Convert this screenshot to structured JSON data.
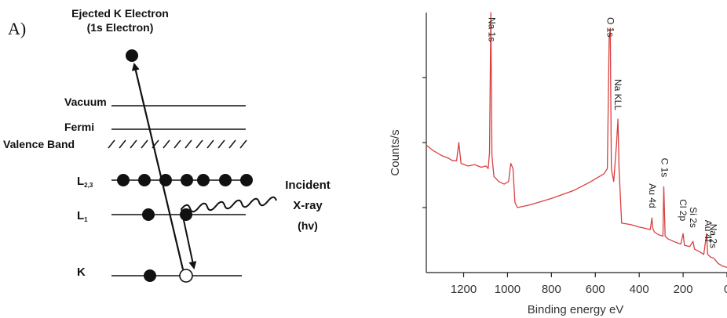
{
  "panel_a": {
    "panel_label": "A)",
    "ejected_title_line1": "Ejected K Electron",
    "ejected_title_line2": "(1s Electron)",
    "levels": {
      "vacuum": "Vacuum",
      "fermi": "Fermi",
      "valence": "Valence Band",
      "l23_main": "L",
      "l23_sub": "2,3",
      "l1_main": "L",
      "l1_sub": "1",
      "k": "K"
    },
    "incident_line1": "Incident",
    "incident_line2": "X-ray",
    "incident_line3": "(hv)",
    "l23_electrons": 7,
    "l1_electrons": 2,
    "k_electrons": 1
  },
  "chart_data": {
    "type": "line",
    "title": "",
    "xlabel": "Binding energy eV",
    "ylabel": "Counts/s",
    "x_reversed": true,
    "xlim": [
      1370,
      0
    ],
    "ylim": [
      0,
      100
    ],
    "xticks": [
      1200,
      1000,
      800,
      600,
      400,
      200,
      0
    ],
    "xtick_labels": [
      "1200",
      "1000",
      "800",
      "600",
      "400",
      "200",
      "0"
    ],
    "ytick_positions": [
      25,
      50,
      75
    ],
    "grid": false,
    "line_color": "#d84040",
    "series": [
      {
        "values_xy": [
          [
            1370,
            49
          ],
          [
            1340,
            47
          ],
          [
            1300,
            45
          ],
          [
            1270,
            44
          ],
          [
            1250,
            43
          ],
          [
            1232,
            43
          ],
          [
            1222,
            50
          ],
          [
            1212,
            42
          ],
          [
            1180,
            41
          ],
          [
            1150,
            41.5
          ],
          [
            1120,
            40.5
          ],
          [
            1098,
            41
          ],
          [
            1088,
            40
          ],
          [
            1082,
            46
          ],
          [
            1076,
            100
          ],
          [
            1071,
            45
          ],
          [
            1062,
            37
          ],
          [
            1040,
            35
          ],
          [
            1015,
            34
          ],
          [
            995,
            35
          ],
          [
            985,
            42
          ],
          [
            975,
            40
          ],
          [
            966,
            27
          ],
          [
            955,
            25
          ],
          [
            900,
            26
          ],
          [
            800,
            28.5
          ],
          [
            700,
            31.5
          ],
          [
            620,
            35
          ],
          [
            560,
            38
          ],
          [
            545,
            40
          ],
          [
            537,
            90
          ],
          [
            532,
            94
          ],
          [
            527,
            40
          ],
          [
            516,
            35
          ],
          [
            503,
            50
          ],
          [
            497,
            59
          ],
          [
            492,
            40
          ],
          [
            480,
            19
          ],
          [
            440,
            18.5
          ],
          [
            400,
            17.5
          ],
          [
            370,
            17
          ],
          [
            350,
            16.5
          ],
          [
            342,
            21
          ],
          [
            338,
            17
          ],
          [
            330,
            15.5
          ],
          [
            310,
            14.5
          ],
          [
            292,
            14
          ],
          [
            288,
            33
          ],
          [
            282,
            14
          ],
          [
            270,
            13
          ],
          [
            230,
            11.5
          ],
          [
            210,
            11
          ],
          [
            200,
            15
          ],
          [
            194,
            10.5
          ],
          [
            170,
            10
          ],
          [
            155,
            12
          ],
          [
            148,
            9
          ],
          [
            125,
            8
          ],
          [
            106,
            7
          ],
          [
            100,
            10.5
          ],
          [
            93,
            15
          ],
          [
            88,
            7
          ],
          [
            75,
            6
          ],
          [
            60,
            5.5
          ],
          [
            40,
            3.5
          ],
          [
            20,
            2.5
          ],
          [
            0,
            2
          ]
        ]
      }
    ],
    "peaks": [
      {
        "label": "Na 1s",
        "x": 1072
      },
      {
        "label": "O 1s",
        "x": 531
      },
      {
        "label": "Na KLL",
        "x": 497
      },
      {
        "label": "Au 4d",
        "x": 340
      },
      {
        "label": "C 1s",
        "x": 285
      },
      {
        "label": "Cl 2p",
        "x": 200
      },
      {
        "label": "Si 2s",
        "x": 153
      },
      {
        "label": "Au 4f",
        "x": 85
      },
      {
        "label": "Na 2s",
        "x": 63
      }
    ]
  }
}
